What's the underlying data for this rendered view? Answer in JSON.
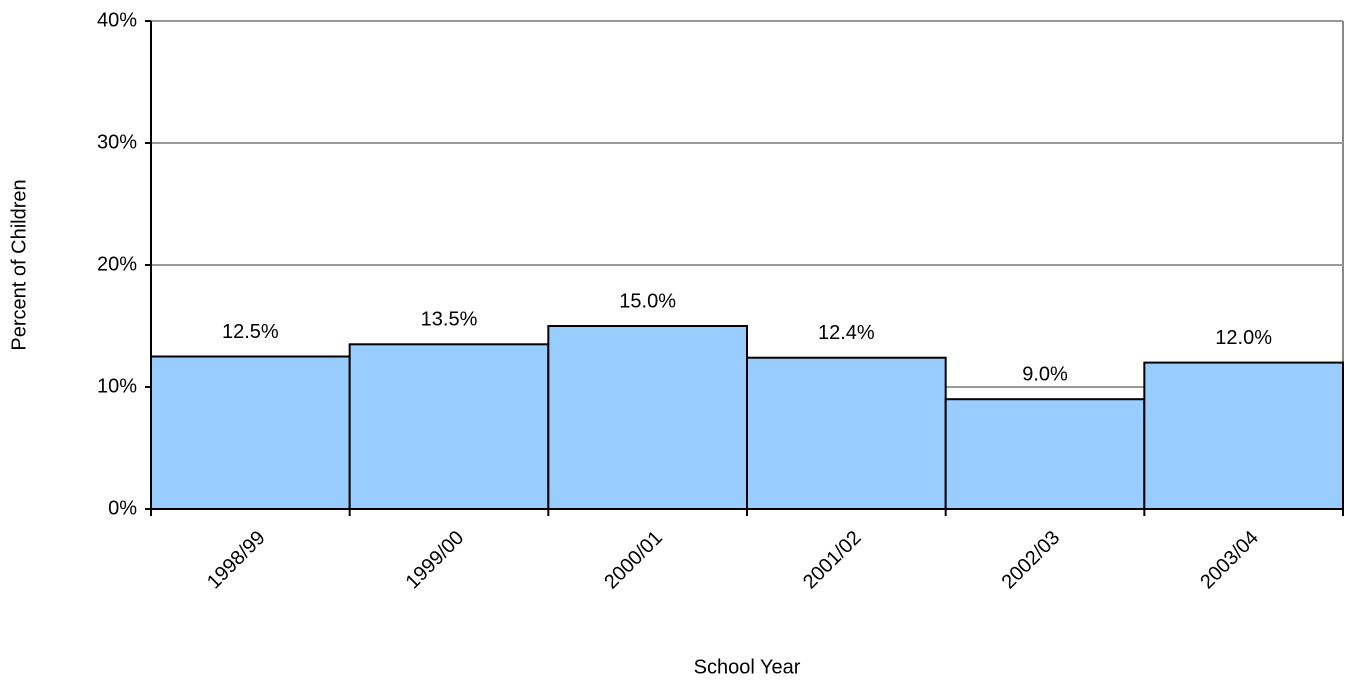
{
  "chart_data": {
    "type": "bar",
    "x_label": "School Year",
    "y_label": "Percent of Children",
    "categories": [
      "1998/99",
      "1999/00",
      "2000/01",
      "2001/02",
      "2002/03",
      "2003/04"
    ],
    "values": [
      12.5,
      13.5,
      15.0,
      12.4,
      9.0,
      12.0
    ],
    "value_labels": [
      "12.5%",
      "13.5%",
      "15.0%",
      "12.4%",
      "9.0%",
      "12.0%"
    ],
    "color": "#99ccff",
    "ylim": [
      0,
      40
    ],
    "yticks": [
      {
        "value": 0,
        "label": "0%"
      },
      {
        "value": 10,
        "label": "10%"
      },
      {
        "value": 20,
        "label": "20%"
      },
      {
        "value": 30,
        "label": "30%"
      },
      {
        "value": 40,
        "label": "40%"
      }
    ],
    "grid": true
  }
}
